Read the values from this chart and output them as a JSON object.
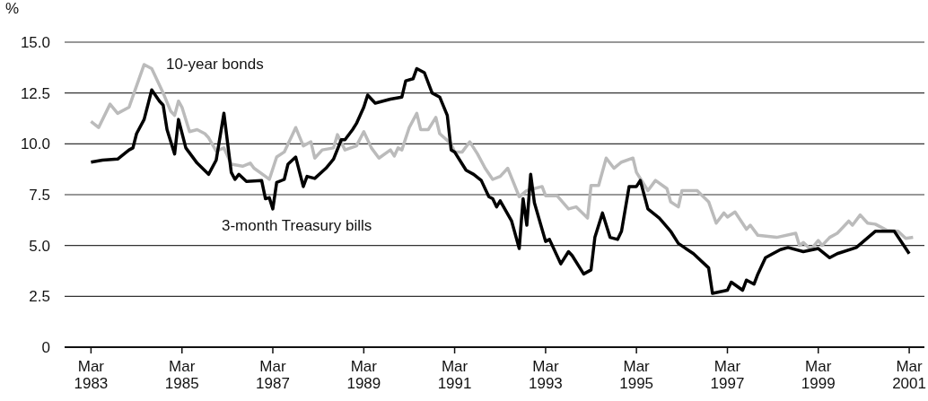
{
  "chart_data": {
    "type": "line",
    "ylabel": "%",
    "xlim": [
      "1982-08",
      "2001-07"
    ],
    "xticks": [
      {
        "value": "1983-03",
        "label": "Mar\n1983"
      },
      {
        "value": "1985-03",
        "label": "Mar\n1985"
      },
      {
        "value": "1987-03",
        "label": "Mar\n1987"
      },
      {
        "value": "1989-03",
        "label": "Mar\n1989"
      },
      {
        "value": "1991-03",
        "label": "Mar\n1991"
      },
      {
        "value": "1993-03",
        "label": "Mar\n1993"
      },
      {
        "value": "1995-03",
        "label": "Mar\n1995"
      },
      {
        "value": "1997-03",
        "label": "Mar\n1997"
      },
      {
        "value": "1999-03",
        "label": "Mar\n1999"
      },
      {
        "value": "2001-03",
        "label": "Mar\n2001"
      }
    ],
    "ylim": [
      0,
      15
    ],
    "yticks": [
      0,
      {
        "value": 2.5,
        "label": "2.5"
      },
      {
        "value": 5,
        "label": "5.0"
      },
      {
        "value": 7.5,
        "label": "7.5"
      },
      {
        "value": 10,
        "label": "10.0"
      },
      {
        "value": 12.5,
        "label": "12.5"
      },
      {
        "value": 15,
        "label": "15.0"
      }
    ],
    "grid": "y",
    "legend": false,
    "marker": "none",
    "line_style": "solid",
    "series": [
      {
        "name": "10-year bonds",
        "color": "#bbbbbb",
        "x": [
          "1983-03",
          "1983-05",
          "1983-08",
          "1983-10",
          "1984-01",
          "1984-02",
          "1984-05",
          "1984-07",
          "1984-10",
          "1984-12",
          "1985-01",
          "1985-02",
          "1985-03",
          "1985-05",
          "1985-07",
          "1985-09",
          "1985-10",
          "1985-12",
          "1986-02",
          "1986-04",
          "1986-07",
          "1986-09",
          "1986-10",
          "1987-01",
          "1987-02",
          "1987-04",
          "1987-06",
          "1987-09",
          "1987-11",
          "1988-01",
          "1988-02",
          "1988-04",
          "1988-07",
          "1988-08",
          "1988-10",
          "1989-01",
          "1989-03",
          "1989-05",
          "1989-07",
          "1989-10",
          "1989-11",
          "1989-12",
          "1990-01",
          "1990-03",
          "1990-05",
          "1990-06",
          "1990-08",
          "1990-10",
          "1990-11",
          "1991-02",
          "1991-03",
          "1991-05",
          "1991-07",
          "1991-09",
          "1991-11",
          "1992-01",
          "1992-03",
          "1992-05",
          "1992-08",
          "1992-10",
          "1993-02",
          "1993-03",
          "1993-06",
          "1993-09",
          "1993-11",
          "1994-02",
          "1994-03",
          "1994-05",
          "1994-07",
          "1994-09",
          "1994-11",
          "1995-02",
          "1995-03",
          "1995-06",
          "1995-08",
          "1995-11",
          "1995-12",
          "1996-02",
          "1996-03",
          "1996-07",
          "1996-10",
          "1996-12",
          "1997-02",
          "1997-03",
          "1997-05",
          "1997-08",
          "1997-09",
          "1997-11",
          "1998-04",
          "1998-09",
          "1998-10",
          "1998-11",
          "1999-01",
          "1999-03",
          "1999-04",
          "1999-06",
          "1999-08",
          "1999-11",
          "1999-12",
          "2000-02",
          "2000-04",
          "2000-06",
          "2000-09",
          "2000-12",
          "2001-02",
          "2001-04"
        ],
        "values": [
          11.1,
          10.8,
          11.95,
          11.5,
          11.8,
          12.35,
          13.9,
          13.7,
          12.5,
          11.6,
          11.4,
          12.1,
          11.8,
          10.6,
          10.7,
          10.5,
          10.3,
          9.65,
          9.8,
          9.0,
          8.9,
          9.05,
          8.8,
          8.4,
          8.25,
          9.35,
          9.6,
          10.8,
          9.9,
          10.1,
          9.3,
          9.7,
          9.8,
          10.45,
          9.7,
          9.9,
          10.6,
          9.8,
          9.3,
          9.7,
          9.4,
          9.8,
          9.7,
          10.8,
          11.5,
          10.7,
          10.7,
          11.3,
          10.5,
          10.0,
          9.6,
          9.6,
          10.1,
          9.5,
          8.8,
          8.25,
          8.4,
          8.8,
          7.4,
          7.7,
          7.9,
          7.45,
          7.45,
          6.8,
          6.9,
          6.35,
          7.95,
          7.95,
          9.3,
          8.8,
          9.1,
          9.3,
          8.6,
          7.7,
          8.2,
          7.8,
          7.15,
          6.9,
          7.7,
          7.7,
          7.15,
          6.1,
          6.6,
          6.4,
          6.65,
          5.8,
          6.0,
          5.5,
          5.4,
          5.6,
          5.0,
          5.15,
          4.8,
          5.25,
          5.0,
          5.4,
          5.6,
          6.2,
          6.0,
          6.5,
          6.1,
          6.05,
          5.75,
          5.7,
          5.35,
          5.4
        ]
      },
      {
        "name": "3-month Treasury bills",
        "color": "#000000",
        "x": [
          "1983-03",
          "1983-06",
          "1983-10",
          "1984-01",
          "1984-02",
          "1984-03",
          "1984-05",
          "1984-07",
          "1984-09",
          "1984-10",
          "1984-11",
          "1985-01",
          "1985-02",
          "1985-04",
          "1985-07",
          "1985-10",
          "1985-12",
          "1986-02",
          "1986-04",
          "1986-05",
          "1986-06",
          "1986-08",
          "1986-12",
          "1987-01",
          "1987-02",
          "1987-03",
          "1987-04",
          "1987-06",
          "1987-07",
          "1987-09",
          "1987-11",
          "1987-12",
          "1988-02",
          "1988-05",
          "1988-07",
          "1988-09",
          "1988-10",
          "1988-12",
          "1989-01",
          "1989-03",
          "1989-04",
          "1989-06",
          "1989-10",
          "1990-01",
          "1990-02",
          "1990-04",
          "1990-05",
          "1990-07",
          "1990-09",
          "1990-11",
          "1991-01",
          "1991-02",
          "1991-03",
          "1991-06",
          "1991-08",
          "1991-10",
          "1991-12",
          "1992-01",
          "1992-02",
          "1992-03",
          "1992-06",
          "1992-08",
          "1992-09",
          "1992-10",
          "1992-11",
          "1992-12",
          "1993-03",
          "1993-04",
          "1993-07",
          "1993-09",
          "1993-10",
          "1994-01",
          "1994-03",
          "1994-04",
          "1994-06",
          "1994-08",
          "1994-10",
          "1994-11",
          "1995-01",
          "1995-03",
          "1995-04",
          "1995-06",
          "1995-09",
          "1995-12",
          "1996-02",
          "1996-06",
          "1996-10",
          "1996-11",
          "1997-03",
          "1997-04",
          "1997-07",
          "1997-08",
          "1997-10",
          "1997-11",
          "1998-01",
          "1998-03",
          "1998-05",
          "1998-07",
          "1998-11",
          "1999-03",
          "1999-06",
          "1999-08",
          "2000-01",
          "2000-06",
          "2000-11",
          "2001-03"
        ],
        "values": [
          9.1,
          9.2,
          9.25,
          9.7,
          9.8,
          10.5,
          11.2,
          12.65,
          12.1,
          11.9,
          10.7,
          9.5,
          11.2,
          9.8,
          9.05,
          8.5,
          9.2,
          11.5,
          8.6,
          8.25,
          8.5,
          8.15,
          8.2,
          7.3,
          7.35,
          6.8,
          8.1,
          8.25,
          9.0,
          9.35,
          7.9,
          8.4,
          8.3,
          8.8,
          9.25,
          10.2,
          10.2,
          10.7,
          11.0,
          11.8,
          12.4,
          12.0,
          12.2,
          12.3,
          13.1,
          13.2,
          13.7,
          13.5,
          12.5,
          12.3,
          11.4,
          9.7,
          9.6,
          8.7,
          8.5,
          8.2,
          7.4,
          7.3,
          6.9,
          7.2,
          6.2,
          4.85,
          7.3,
          6.0,
          8.5,
          7.1,
          5.2,
          5.3,
          4.1,
          4.7,
          4.5,
          3.6,
          3.8,
          5.4,
          6.6,
          5.4,
          5.3,
          5.7,
          7.9,
          7.9,
          8.2,
          6.8,
          6.35,
          5.7,
          5.1,
          4.6,
          3.9,
          2.65,
          2.8,
          3.2,
          2.8,
          3.3,
          3.1,
          3.6,
          4.4,
          4.6,
          4.8,
          4.9,
          4.7,
          4.85,
          4.4,
          4.6,
          4.9,
          5.7,
          5.7,
          4.6
        ]
      }
    ]
  }
}
